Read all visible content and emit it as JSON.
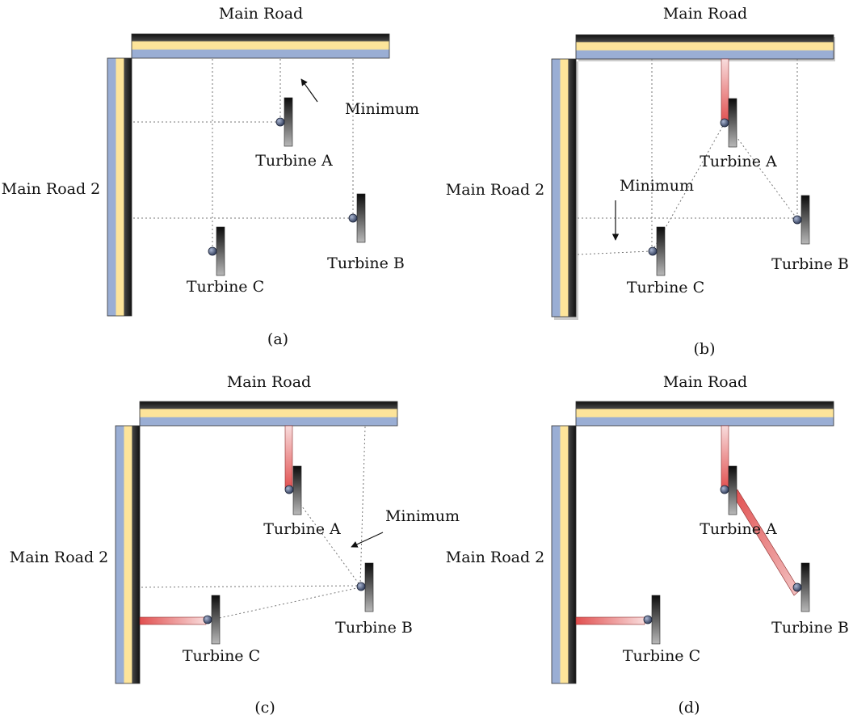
{
  "colors": {
    "road_dark": "#111111",
    "road_yellow": "#fde49a",
    "road_blue": "#9aaed4",
    "access_red": "#e35a5a",
    "access_pink": "#f6d2d2",
    "hub": "#4a5a7a",
    "dotted": "#777777"
  },
  "panels": [
    {
      "caption": "(a)",
      "main_road": "Main Road",
      "main_road_2": "Main Road 2",
      "turbines": [
        {
          "label": "Turbine A"
        },
        {
          "label": "Turbine B"
        },
        {
          "label": "Turbine C"
        }
      ],
      "annotation": "Minimum"
    },
    {
      "caption": "(b)",
      "main_road": "Main Road",
      "main_road_2": "Main Road 2",
      "turbines": [
        {
          "label": "Turbine A"
        },
        {
          "label": "Turbine B"
        },
        {
          "label": "Turbine C"
        }
      ],
      "annotation": "Minimum"
    },
    {
      "caption": "(c)",
      "main_road": "Main Road",
      "main_road_2": "Main Road 2",
      "turbines": [
        {
          "label": "Turbine A"
        },
        {
          "label": "Turbine B"
        },
        {
          "label": "Turbine C"
        }
      ],
      "annotation": "Minimum"
    },
    {
      "caption": "(d)",
      "main_road": "Main Road",
      "main_road_2": "Main Road 2",
      "turbines": [
        {
          "label": "Turbine A"
        },
        {
          "label": "Turbine B"
        },
        {
          "label": "Turbine C"
        }
      ]
    }
  ]
}
